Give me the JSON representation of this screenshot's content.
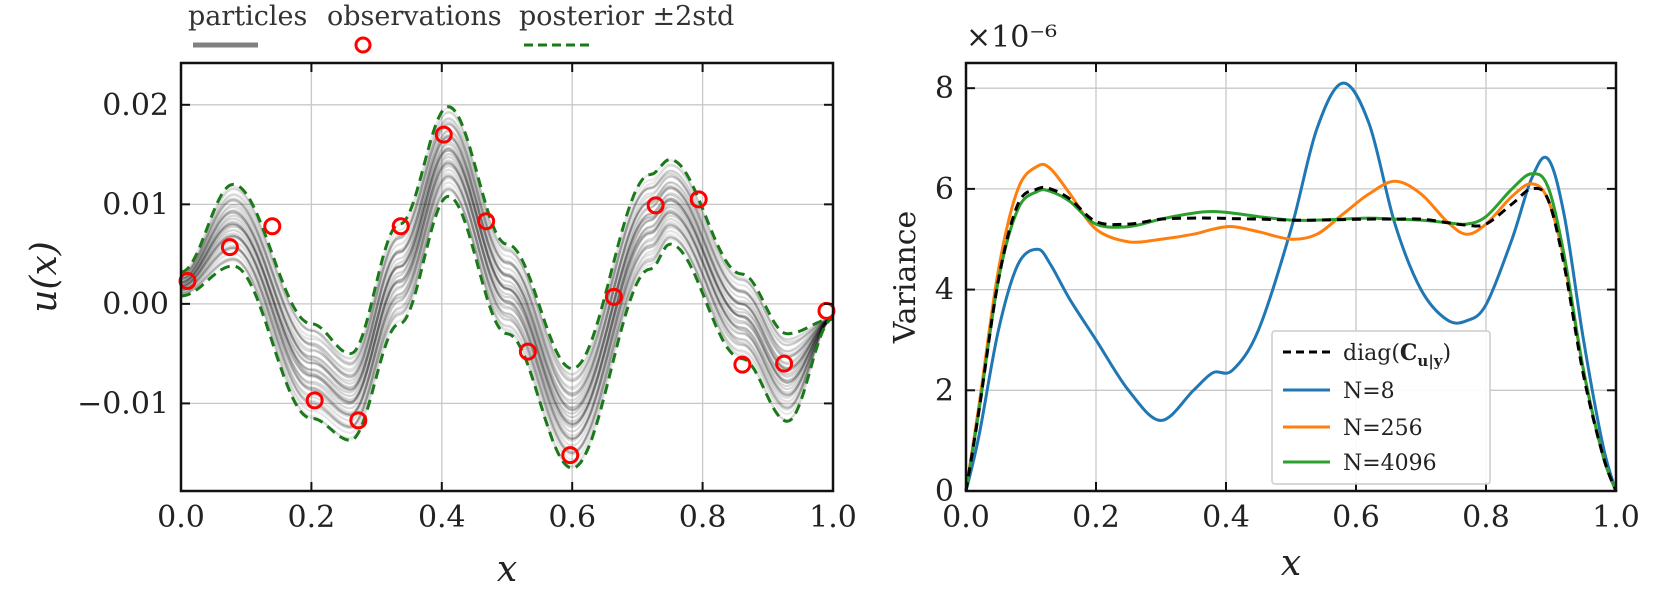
{
  "chart_data": [
    {
      "type": "line",
      "title": "",
      "xlabel": "x",
      "ylabel": "u(x)",
      "xlim": [
        0.0,
        1.0
      ],
      "ylim": [
        -0.0188,
        0.0242
      ],
      "xticks": [
        0.0,
        0.2,
        0.4,
        0.6,
        0.8,
        1.0
      ],
      "xtick_labels": [
        "0.0",
        "0.2",
        "0.4",
        "0.6",
        "0.8",
        "1.0"
      ],
      "yticks": [
        -0.01,
        0.0,
        0.01,
        0.02
      ],
      "ytick_labels": [
        "−0.01",
        "0.00",
        "0.01",
        "0.02"
      ],
      "grid": true,
      "legend": {
        "position": "top-outside",
        "entries": [
          {
            "label": "particles",
            "style": "solid",
            "color": "#808080"
          },
          {
            "label": "observations",
            "style": "marker-circle",
            "color": "#ff0000"
          },
          {
            "label": "posterior ±2std",
            "style": "dashed",
            "color": "#1a7a1a"
          }
        ]
      },
      "posterior_band": {
        "x": [
          0.0,
          0.08,
          0.2,
          0.26,
          0.335,
          0.41,
          0.5,
          0.6,
          0.72,
          0.75,
          0.86,
          0.93,
          1.0
        ],
        "upper": [
          0.0032,
          0.012,
          -0.002,
          -0.005,
          0.008,
          0.0198,
          0.006,
          -0.0065,
          0.013,
          0.0145,
          0.003,
          -0.003,
          -0.0015
        ],
        "lower": [
          0.0008,
          0.0038,
          -0.0115,
          -0.0137,
          -0.002,
          0.0108,
          -0.003,
          -0.0165,
          0.0035,
          0.006,
          -0.0055,
          -0.0118,
          -0.0015
        ]
      },
      "observations": {
        "x": [
          0.01,
          0.075,
          0.14,
          0.205,
          0.272,
          0.337,
          0.403,
          0.468,
          0.532,
          0.597,
          0.664,
          0.728,
          0.794,
          0.861,
          0.925,
          0.99
        ],
        "y": [
          0.0023,
          0.0057,
          0.0078,
          -0.0097,
          -0.0117,
          0.0078,
          0.017,
          0.0083,
          -0.0048,
          -0.0152,
          0.0007,
          0.0099,
          0.0105,
          -0.0061,
          -0.006,
          -0.0007
        ]
      }
    },
    {
      "type": "line",
      "title": "",
      "xlabel": "x",
      "ylabel": "Variance",
      "scale_label": "×10⁻⁶",
      "xlim": [
        0.0,
        1.0
      ],
      "ylim": [
        0,
        8.5
      ],
      "xticks": [
        0.0,
        0.2,
        0.4,
        0.6,
        0.8,
        1.0
      ],
      "xtick_labels": [
        "0.0",
        "0.2",
        "0.4",
        "0.6",
        "0.8",
        "1.0"
      ],
      "yticks": [
        0,
        2,
        4,
        6,
        8
      ],
      "ytick_labels": [
        "0",
        "2",
        "4",
        "6",
        "8"
      ],
      "grid": true,
      "legend_position": "lower-center",
      "x": [
        0.0,
        0.02,
        0.05,
        0.08,
        0.11,
        0.13,
        0.16,
        0.2,
        0.25,
        0.3,
        0.35,
        0.38,
        0.41,
        0.45,
        0.5,
        0.54,
        0.58,
        0.62,
        0.66,
        0.7,
        0.74,
        0.77,
        0.8,
        0.84,
        0.87,
        0.895,
        0.92,
        0.95,
        0.98,
        1.0
      ],
      "series": [
        {
          "name": "diag(C_{u|y})",
          "color": "#000000",
          "dashed": true,
          "values": [
            0,
            1.6,
            4.2,
            5.7,
            6.0,
            6.0,
            5.8,
            5.35,
            5.3,
            5.4,
            5.42,
            5.42,
            5.41,
            5.4,
            5.38,
            5.38,
            5.39,
            5.4,
            5.4,
            5.4,
            5.33,
            5.28,
            5.3,
            5.7,
            6.0,
            5.8,
            4.5,
            2.3,
            0.7,
            0
          ]
        },
        {
          "name": "N=8",
          "color": "#1f77b4",
          "values": [
            0,
            1.1,
            3.2,
            4.5,
            4.8,
            4.5,
            3.8,
            3.0,
            2.0,
            1.4,
            2.0,
            2.35,
            2.4,
            3.2,
            5.2,
            7.2,
            8.1,
            7.3,
            5.3,
            4.0,
            3.4,
            3.38,
            3.7,
            5.0,
            6.2,
            6.6,
            5.5,
            3.0,
            0.9,
            0
          ]
        },
        {
          "name": "N=256",
          "color": "#ff7f0e",
          "values": [
            0,
            1.7,
            4.4,
            6.0,
            6.45,
            6.4,
            5.9,
            5.2,
            4.95,
            5.0,
            5.1,
            5.2,
            5.25,
            5.15,
            5.0,
            5.1,
            5.5,
            5.9,
            6.15,
            5.9,
            5.35,
            5.1,
            5.3,
            5.85,
            6.1,
            5.8,
            4.6,
            2.4,
            0.7,
            0
          ]
        },
        {
          "name": "N=4096",
          "color": "#2ca02c",
          "values": [
            0,
            1.6,
            4.2,
            5.6,
            5.95,
            5.95,
            5.75,
            5.3,
            5.25,
            5.4,
            5.52,
            5.55,
            5.52,
            5.45,
            5.38,
            5.38,
            5.4,
            5.42,
            5.4,
            5.38,
            5.33,
            5.3,
            5.45,
            6.0,
            6.3,
            6.05,
            4.7,
            2.4,
            0.7,
            0
          ]
        }
      ]
    }
  ]
}
